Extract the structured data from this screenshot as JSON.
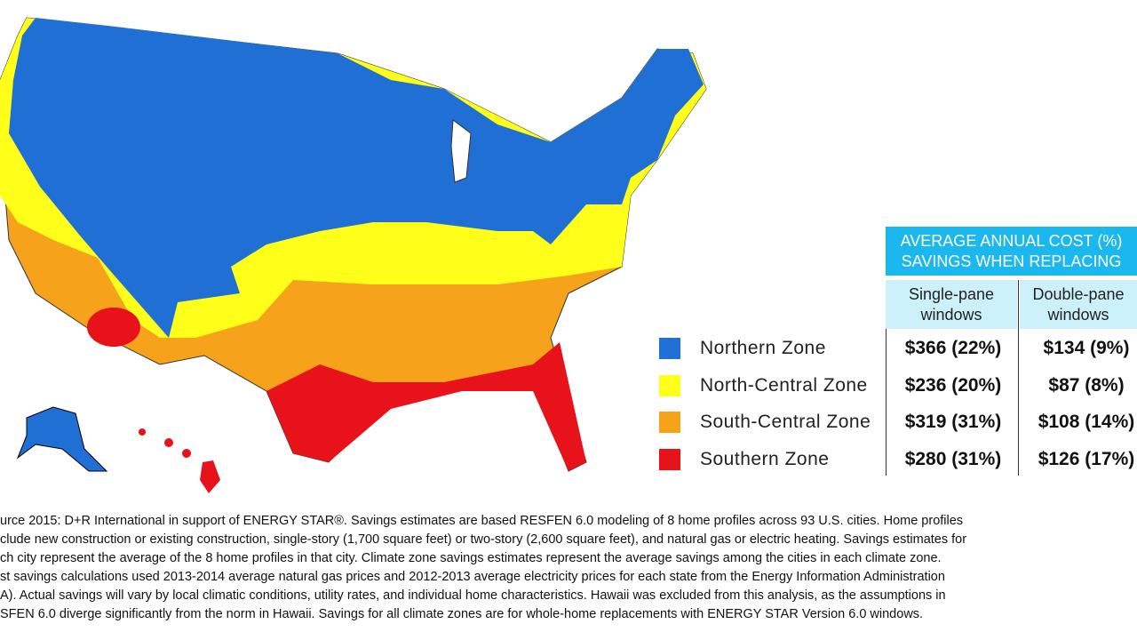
{
  "table": {
    "header": [
      "AVERAGE ANNUAL COST (%)",
      "SAVINGS WHEN REPLACING"
    ],
    "columns": [
      "Single-pane windows",
      "Double-pane windows"
    ],
    "rows": [
      {
        "zone": "Northern Zone",
        "color": "#1f6fd4",
        "single": "$366 (22%)",
        "double": "$134 (9%)"
      },
      {
        "zone": "North-Central Zone",
        "color": "#ffff1a",
        "single": "$236 (20%)",
        "double": "$87 (8%)"
      },
      {
        "zone": "South-Central Zone",
        "color": "#f7a21b",
        "single": "$319 (31%)",
        "double": "$108 (14%)"
      },
      {
        "zone": "Southern Zone",
        "color": "#e8121b",
        "single": "$280 (31%)",
        "double": "$126 (17%)"
      }
    ]
  },
  "footnote": [
    "urce 2015: D+R International in support of ENERGY STAR®. Savings estimates are based RESFEN 6.0 modeling of 8 home profiles across 93 U.S. cities. Home profiles",
    "clude new construction or existing construction, single-story (1,700 square feet) or two-story (2,600 square feet), and natural gas or electric heating. Savings estimates for",
    "ch city represent the average of the 8 home profiles in that city. Climate zone savings estimates represent the average savings among the cities in each climate zone.",
    "st savings calculations used 2013-2014 average natural gas prices and 2012-2013 average electricity prices for each state from the Energy Information Administration",
    "A). Actual savings will vary by local climatic conditions, utility rates, and individual home characteristics. Hawaii was excluded from this analysis, as the assumptions in",
    "SFEN 6.0 diverge significantly from the norm in Hawaii. Savings for all climate zones are for whole-home replacements with ENERGY STAR Version 6.0 windows."
  ]
}
